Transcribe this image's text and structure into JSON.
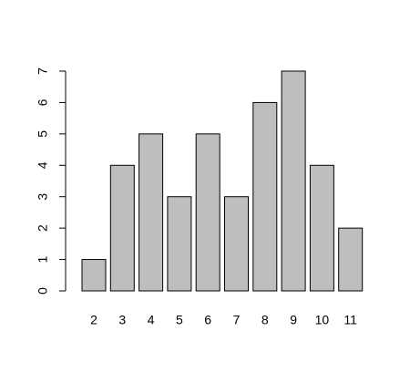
{
  "chart_data": {
    "type": "bar",
    "categories": [
      "2",
      "3",
      "4",
      "5",
      "6",
      "7",
      "8",
      "9",
      "10",
      "11"
    ],
    "values": [
      1,
      4,
      5,
      3,
      5,
      3,
      6,
      7,
      4,
      2
    ],
    "color": "#bebebe",
    "ylim": [
      0,
      7
    ],
    "yticks": [
      0,
      1,
      2,
      3,
      4,
      5,
      6,
      7
    ],
    "grid": false
  }
}
